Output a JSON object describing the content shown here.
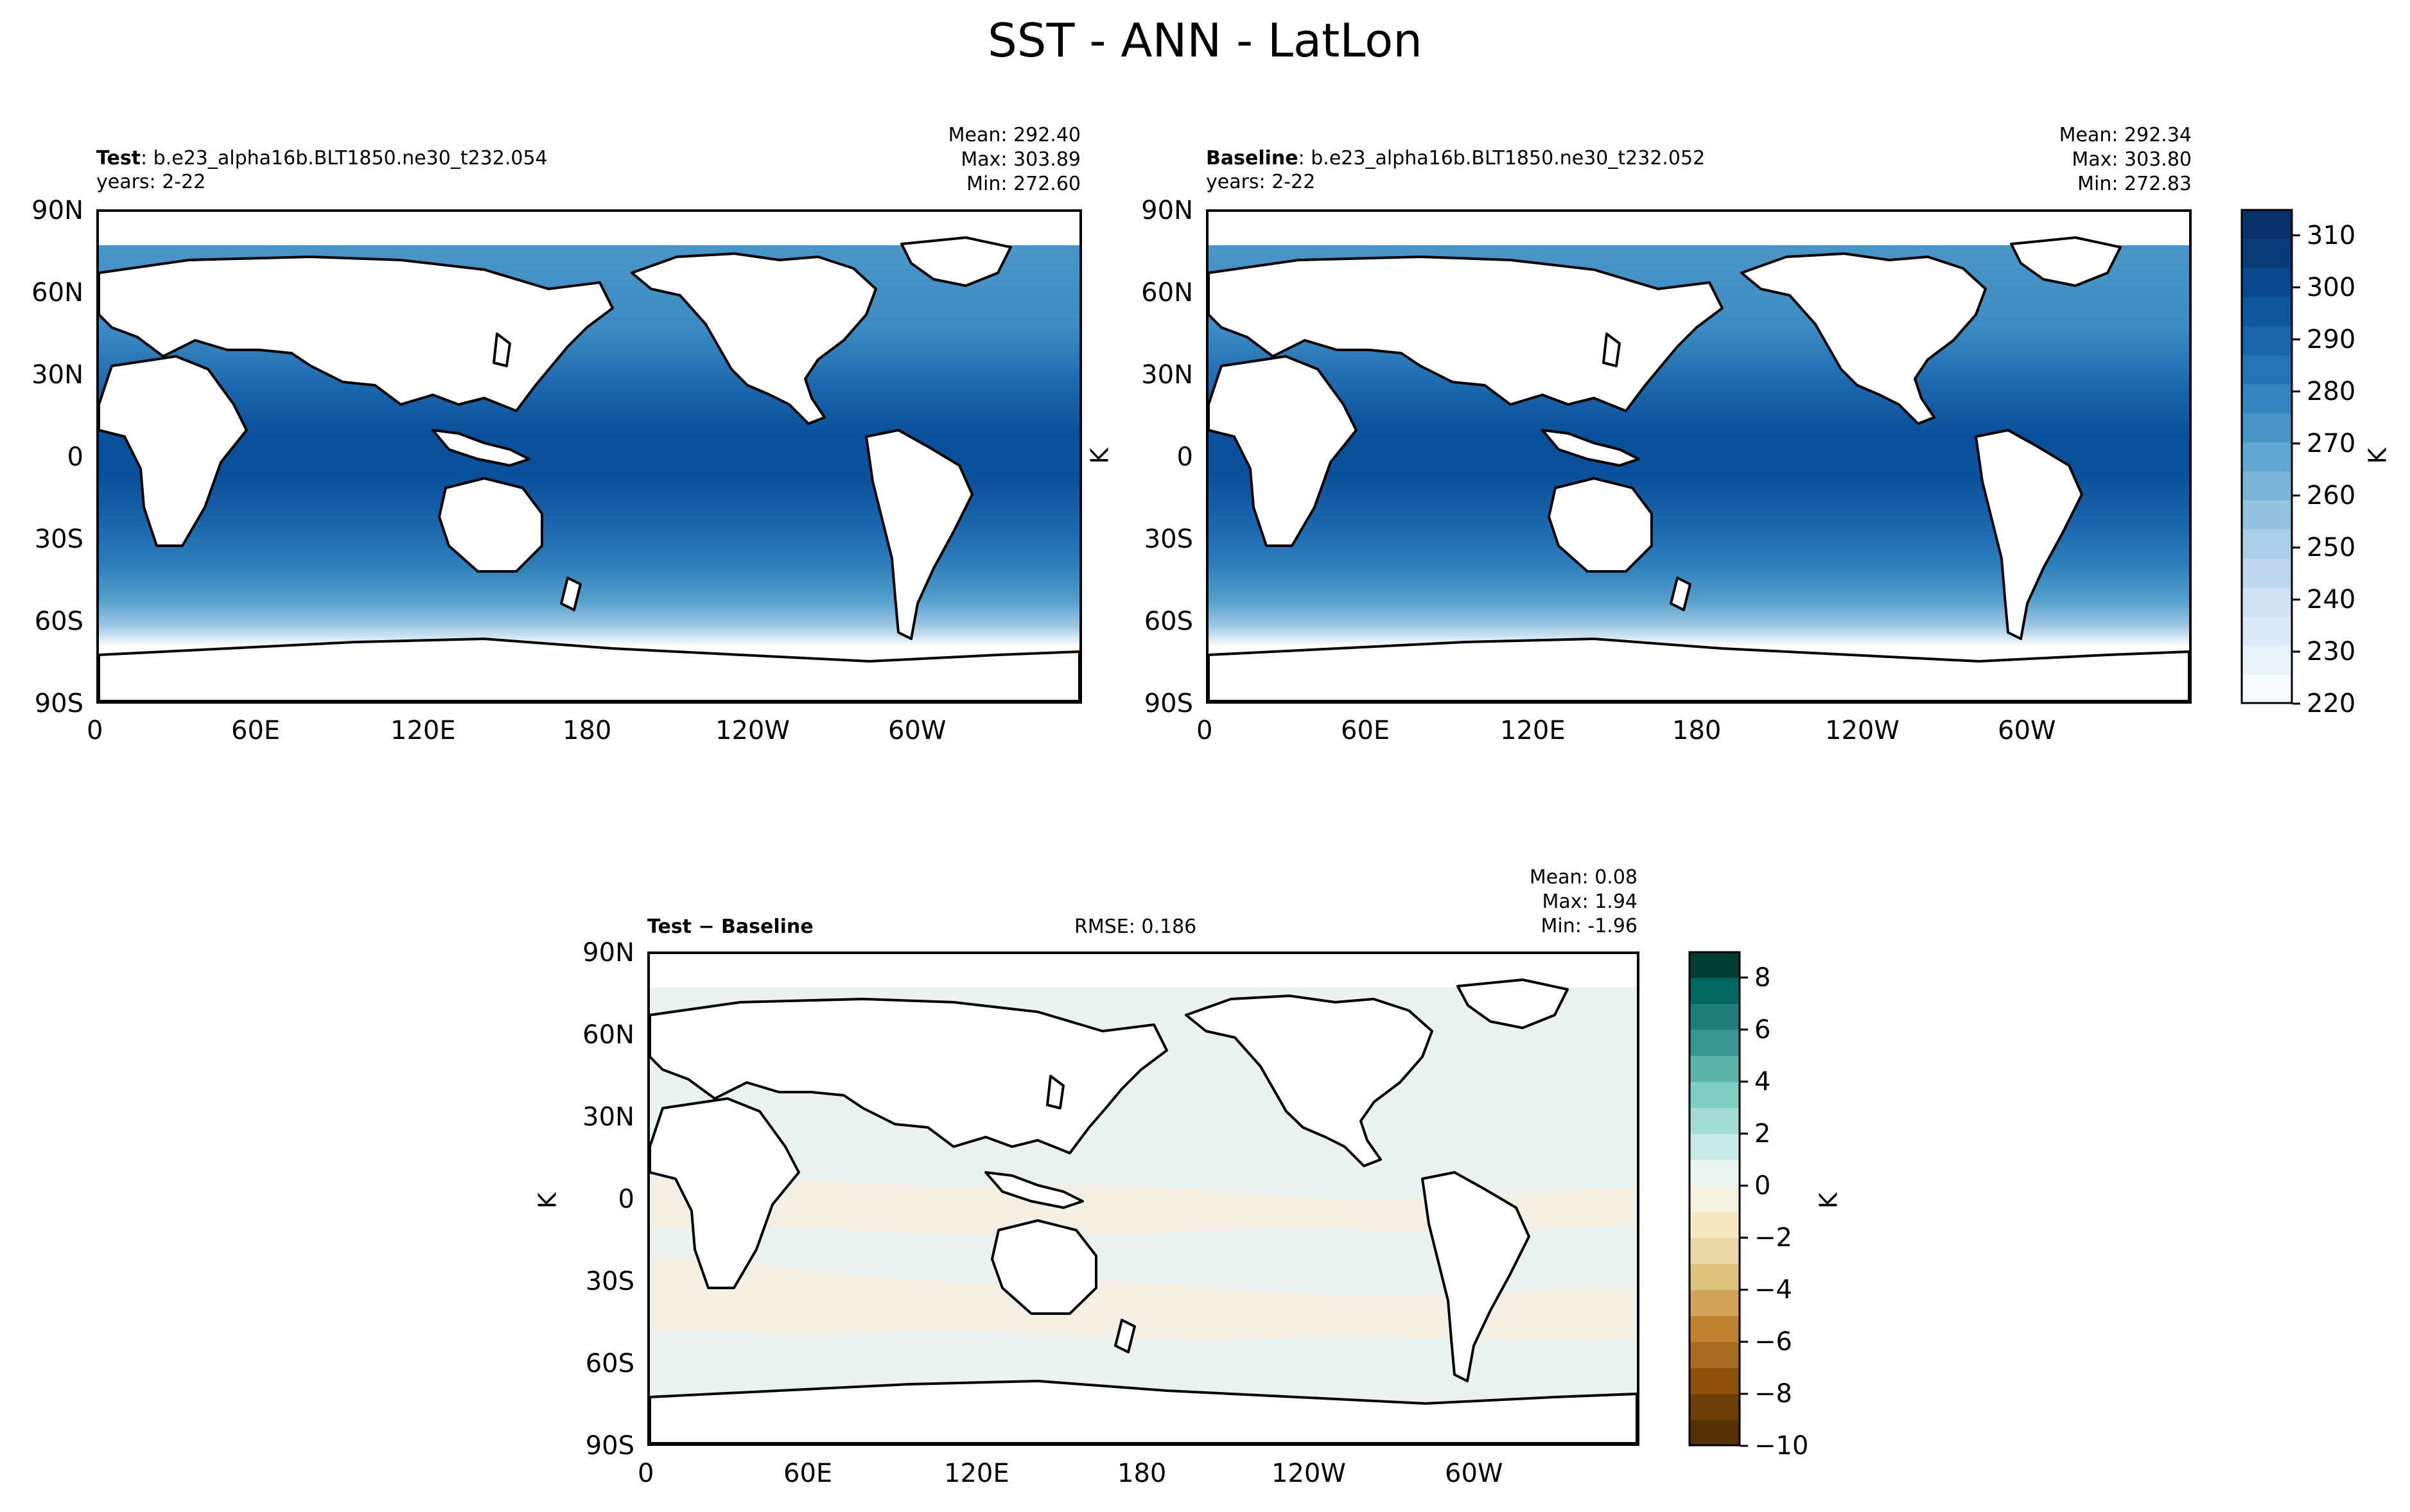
{
  "figure": {
    "title": "SST - ANN - LatLon"
  },
  "panels": [
    {
      "id": "test",
      "label": "Test",
      "case": ": b.e23_alpha16b.BLT1850.ne30_t232.054",
      "years": "years: 2-22",
      "stats": [
        "Mean: 292.40",
        "Max: 303.89",
        "Min: 272.60"
      ],
      "ylabel": ""
    },
    {
      "id": "baseline",
      "label": "Baseline",
      "case": ": b.e23_alpha16b.BLT1850.ne30_t232.052",
      "years": "years: 2-22",
      "stats": [
        "Mean: 292.34",
        "Max: 303.80",
        "Min: 272.83"
      ],
      "ylabel": "K"
    },
    {
      "id": "diff",
      "label": "Test − Baseline",
      "rmse": "RMSE: 0.186",
      "stats": [
        "Mean:  0.08",
        "Max:  1.94",
        "Min: -1.96"
      ],
      "ylabel": "K"
    }
  ],
  "axes": {
    "lon_ticks": [
      "0",
      "60E",
      "120E",
      "180",
      "120W",
      "60W"
    ],
    "lat_ticks": [
      "90N",
      "60N",
      "30N",
      "0",
      "30S",
      "60S",
      "90S"
    ]
  },
  "colorbars": {
    "sst": {
      "label": "K",
      "range": [
        220,
        315
      ],
      "tick_labels": [
        "310",
        "300",
        "290",
        "280",
        "270",
        "260",
        "250",
        "240",
        "230",
        "220"
      ],
      "colors": [
        "#f7fbff",
        "#e9f2fb",
        "#dce9f6",
        "#cfe1f2",
        "#bfd8ed",
        "#abcfe6",
        "#94c4df",
        "#7bb6d9",
        "#60a6d2",
        "#4995c6",
        "#3484bf",
        "#2473b7",
        "#1865ac",
        "#0e579f",
        "#09488e",
        "#083b77",
        "#08306b"
      ]
    },
    "diff": {
      "label": "K",
      "range": [
        -10,
        9
      ],
      "tick_labels": [
        "8",
        "6",
        "4",
        "2",
        "0",
        "−2",
        "−4",
        "−6",
        "−8",
        "−10"
      ],
      "colors": [
        "#543005",
        "#6d3f08",
        "#8c510a",
        "#a76b1f",
        "#bf812d",
        "#d2a45a",
        "#dfc27d",
        "#ebd7a8",
        "#f6e8c3",
        "#f5f0e0",
        "#eaf4f1",
        "#c7eae5",
        "#a2dcd3",
        "#80cdc1",
        "#5ab4a9",
        "#35978f",
        "#1f7f78",
        "#01665e",
        "#003c30"
      ]
    }
  },
  "chart_data": [
    {
      "type": "heatmap",
      "title": "Test",
      "field": "SST (K), annual mean, lat-lon map",
      "x_range": [
        "0",
        "360"
      ],
      "y_range": [
        -90,
        90
      ],
      "summary": {
        "mean": 292.4,
        "max": 303.89,
        "min": 272.6
      }
    },
    {
      "type": "heatmap",
      "title": "Baseline",
      "field": "SST (K), annual mean, lat-lon map",
      "x_range": [
        "0",
        "360"
      ],
      "y_range": [
        -90,
        90
      ],
      "summary": {
        "mean": 292.34,
        "max": 303.8,
        "min": 272.83
      }
    },
    {
      "type": "heatmap",
      "title": "Test − Baseline",
      "field": "SST difference (K)",
      "x_range": [
        "0",
        "360"
      ],
      "y_range": [
        -90,
        90
      ],
      "summary": {
        "mean": 0.08,
        "max": 1.94,
        "min": -1.96,
        "rmse": 0.186
      }
    }
  ]
}
